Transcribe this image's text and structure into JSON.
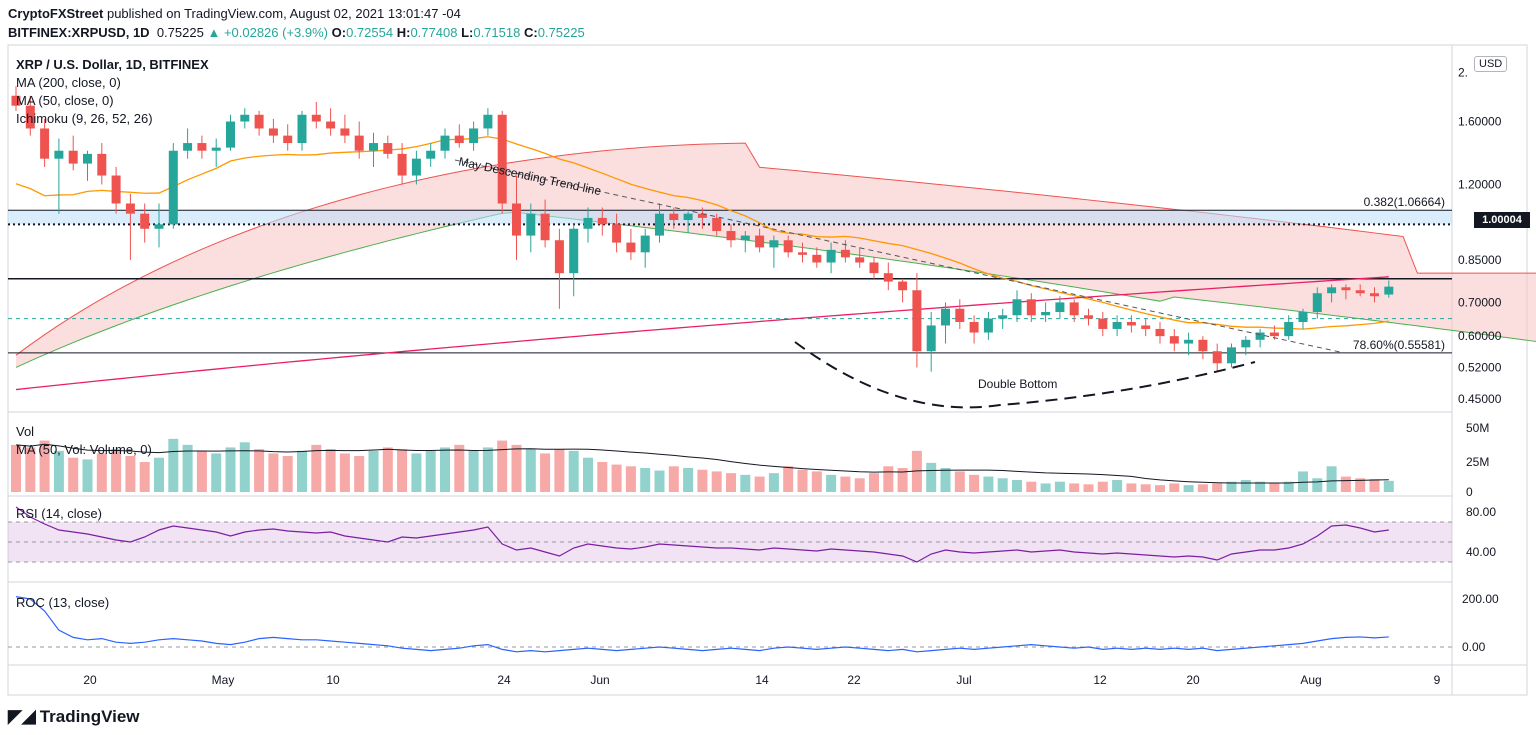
{
  "header": {
    "publisher_line_bold": "CryptoFXStreet",
    "publisher_line_rest": " published on TradingView.com, August 02, 2021 13:01:47 -04",
    "symbol": "BITFINEX:XRPUSD, 1D",
    "last": "0.75225",
    "change": "+0.02826 (+3.9%)",
    "o_label": "O:",
    "o": "0.72554",
    "h_label": "H:",
    "h": "0.77408",
    "l_label": "L:",
    "l": "0.71518",
    "c_label": "C:",
    "c": "0.75225"
  },
  "legend": {
    "title": "XRP / U.S. Dollar, 1D, BITFINEX",
    "ma200": "MA (200, close, 0)",
    "ma50": "MA (50, close, 0)",
    "ichimoku": "Ichimoku (9, 26, 52, 26)",
    "vol": "Vol",
    "vol_ma": "MA (50, Vol: Volume, 0)",
    "rsi": "RSI (14, close)",
    "roc": "ROC (13, close)"
  },
  "annotations": {
    "trend_line": "May Descending Trend line",
    "double_bottom": "Double Bottom",
    "fib_382": "0.382(1.06664)",
    "fib_786": "78.60%(0.55581)",
    "current_price": "1.00004",
    "usd_badge": "USD"
  },
  "colors": {
    "up": "#26a69a",
    "down": "#ef5350",
    "ma200": "#e91e63",
    "ma50": "#ff9800",
    "cloud_bear": "#f8c8c8",
    "cloud_bull": "#c8e6c9",
    "rsi": "#7b1fa2",
    "roc": "#2962ff"
  },
  "footer": {
    "brand": "TradingView"
  },
  "chart_data": {
    "type": "candlestick",
    "price_axis_ticks": [
      "2.",
      "1.60000",
      "1.20000",
      "0.85000",
      "0.70000",
      "0.60000",
      "0.52000",
      "0.45000"
    ],
    "volume_axis_ticks": [
      "50M",
      "25M",
      "0"
    ],
    "rsi_axis_ticks": [
      "80.00",
      "40.00"
    ],
    "roc_axis_ticks": [
      "200.00",
      "0.00"
    ],
    "x_ticks": [
      "20",
      "May",
      "10",
      "24",
      "Jun",
      "14",
      "22",
      "Jul",
      "12",
      "20",
      "Aug",
      "9"
    ],
    "horizontal_levels": [
      1.06664,
      1.00004,
      0.78,
      0.65,
      0.55581
    ],
    "candles": [
      [
        1.8,
        1.88,
        1.68,
        1.72
      ],
      [
        1.72,
        1.8,
        1.5,
        1.55
      ],
      [
        1.55,
        1.62,
        1.3,
        1.35
      ],
      [
        1.35,
        1.48,
        1.05,
        1.4
      ],
      [
        1.4,
        1.5,
        1.28,
        1.32
      ],
      [
        1.32,
        1.4,
        1.22,
        1.38
      ],
      [
        1.38,
        1.45,
        1.2,
        1.25
      ],
      [
        1.25,
        1.3,
        1.05,
        1.1
      ],
      [
        1.1,
        1.15,
        0.85,
        1.05
      ],
      [
        1.05,
        1.1,
        0.92,
        0.98
      ],
      [
        0.98,
        1.1,
        0.9,
        1.0
      ],
      [
        1.0,
        1.45,
        0.98,
        1.4
      ],
      [
        1.4,
        1.55,
        1.35,
        1.45
      ],
      [
        1.45,
        1.5,
        1.35,
        1.4
      ],
      [
        1.4,
        1.48,
        1.3,
        1.42
      ],
      [
        1.42,
        1.65,
        1.4,
        1.6
      ],
      [
        1.6,
        1.7,
        1.55,
        1.65
      ],
      [
        1.65,
        1.68,
        1.5,
        1.55
      ],
      [
        1.55,
        1.62,
        1.45,
        1.5
      ],
      [
        1.5,
        1.58,
        1.4,
        1.45
      ],
      [
        1.45,
        1.68,
        1.4,
        1.65
      ],
      [
        1.65,
        1.75,
        1.55,
        1.6
      ],
      [
        1.6,
        1.7,
        1.5,
        1.55
      ],
      [
        1.55,
        1.65,
        1.45,
        1.5
      ],
      [
        1.5,
        1.6,
        1.35,
        1.4
      ],
      [
        1.4,
        1.52,
        1.3,
        1.45
      ],
      [
        1.45,
        1.5,
        1.35,
        1.38
      ],
      [
        1.38,
        1.45,
        1.2,
        1.25
      ],
      [
        1.25,
        1.4,
        1.2,
        1.35
      ],
      [
        1.35,
        1.45,
        1.3,
        1.4
      ],
      [
        1.4,
        1.55,
        1.35,
        1.5
      ],
      [
        1.5,
        1.58,
        1.42,
        1.45
      ],
      [
        1.45,
        1.6,
        1.4,
        1.55
      ],
      [
        1.55,
        1.7,
        1.5,
        1.65
      ],
      [
        1.65,
        1.68,
        1.05,
        1.1
      ],
      [
        1.1,
        1.25,
        0.85,
        0.95
      ],
      [
        0.95,
        1.1,
        0.88,
        1.05
      ],
      [
        1.05,
        1.12,
        0.9,
        0.93
      ],
      [
        0.93,
        0.98,
        0.68,
        0.8
      ],
      [
        0.8,
        1.0,
        0.72,
        0.98
      ],
      [
        0.98,
        1.08,
        0.92,
        1.03
      ],
      [
        1.03,
        1.08,
        0.95,
        1.0
      ],
      [
        1.0,
        1.05,
        0.88,
        0.92
      ],
      [
        0.92,
        0.98,
        0.85,
        0.88
      ],
      [
        0.88,
        0.98,
        0.82,
        0.95
      ],
      [
        0.95,
        1.1,
        0.92,
        1.05
      ],
      [
        1.05,
        1.08,
        0.98,
        1.02
      ],
      [
        1.02,
        1.06,
        0.96,
        1.05
      ],
      [
        1.05,
        1.08,
        0.98,
        1.03
      ],
      [
        1.03,
        1.05,
        0.95,
        0.97
      ],
      [
        0.97,
        1.0,
        0.9,
        0.93
      ],
      [
        0.93,
        0.97,
        0.88,
        0.95
      ],
      [
        0.95,
        0.98,
        0.88,
        0.9
      ],
      [
        0.9,
        0.95,
        0.82,
        0.93
      ],
      [
        0.93,
        0.95,
        0.86,
        0.88
      ],
      [
        0.88,
        0.92,
        0.84,
        0.87
      ],
      [
        0.87,
        0.9,
        0.82,
        0.84
      ],
      [
        0.84,
        0.92,
        0.8,
        0.89
      ],
      [
        0.89,
        0.93,
        0.84,
        0.86
      ],
      [
        0.86,
        0.9,
        0.82,
        0.84
      ],
      [
        0.84,
        0.86,
        0.78,
        0.8
      ],
      [
        0.8,
        0.84,
        0.74,
        0.77
      ],
      [
        0.77,
        0.78,
        0.7,
        0.74
      ],
      [
        0.74,
        0.8,
        0.52,
        0.56
      ],
      [
        0.56,
        0.67,
        0.51,
        0.63
      ],
      [
        0.63,
        0.7,
        0.58,
        0.68
      ],
      [
        0.68,
        0.71,
        0.62,
        0.64
      ],
      [
        0.64,
        0.66,
        0.58,
        0.61
      ],
      [
        0.61,
        0.67,
        0.59,
        0.65
      ],
      [
        0.65,
        0.68,
        0.62,
        0.66
      ],
      [
        0.66,
        0.74,
        0.64,
        0.71
      ],
      [
        0.71,
        0.73,
        0.64,
        0.66
      ],
      [
        0.66,
        0.7,
        0.64,
        0.67
      ],
      [
        0.67,
        0.72,
        0.65,
        0.7
      ],
      [
        0.7,
        0.71,
        0.64,
        0.66
      ],
      [
        0.66,
        0.68,
        0.63,
        0.65
      ],
      [
        0.65,
        0.67,
        0.6,
        0.62
      ],
      [
        0.62,
        0.66,
        0.6,
        0.64
      ],
      [
        0.64,
        0.66,
        0.61,
        0.63
      ],
      [
        0.63,
        0.65,
        0.6,
        0.62
      ],
      [
        0.62,
        0.64,
        0.58,
        0.6
      ],
      [
        0.6,
        0.62,
        0.56,
        0.58
      ],
      [
        0.58,
        0.61,
        0.55,
        0.59
      ],
      [
        0.59,
        0.6,
        0.54,
        0.56
      ],
      [
        0.56,
        0.58,
        0.51,
        0.53
      ],
      [
        0.53,
        0.58,
        0.52,
        0.57
      ],
      [
        0.57,
        0.6,
        0.55,
        0.59
      ],
      [
        0.59,
        0.62,
        0.57,
        0.61
      ],
      [
        0.61,
        0.63,
        0.59,
        0.6
      ],
      [
        0.6,
        0.66,
        0.59,
        0.64
      ],
      [
        0.64,
        0.68,
        0.62,
        0.67
      ],
      [
        0.67,
        0.75,
        0.65,
        0.73
      ],
      [
        0.73,
        0.76,
        0.7,
        0.75
      ],
      [
        0.75,
        0.76,
        0.71,
        0.74
      ],
      [
        0.74,
        0.76,
        0.72,
        0.73
      ],
      [
        0.73,
        0.75,
        0.7,
        0.72
      ],
      [
        0.72554,
        0.77408,
        0.71518,
        0.75225
      ]
    ],
    "volume_m": [
      55,
      52,
      60,
      48,
      40,
      38,
      45,
      50,
      42,
      35,
      40,
      62,
      55,
      48,
      45,
      52,
      58,
      50,
      45,
      42,
      48,
      55,
      50,
      45,
      42,
      48,
      52,
      50,
      45,
      48,
      52,
      55,
      48,
      52,
      60,
      55,
      50,
      45,
      50,
      48,
      40,
      35,
      32,
      30,
      28,
      25,
      30,
      28,
      26,
      24,
      22,
      20,
      18,
      22,
      30,
      26,
      24,
      20,
      18,
      16,
      22,
      30,
      28,
      48,
      34,
      28,
      24,
      20,
      18,
      16,
      14,
      12,
      10,
      12,
      10,
      9,
      12,
      14,
      10,
      9,
      8,
      10,
      8,
      9,
      10,
      12,
      14,
      12,
      10,
      12,
      24,
      16,
      30,
      18,
      16,
      15,
      13
    ],
    "rsi": [
      85,
      75,
      68,
      62,
      60,
      58,
      55,
      52,
      50,
      55,
      62,
      66,
      64,
      62,
      60,
      56,
      60,
      62,
      63,
      61,
      60,
      59,
      60,
      56,
      54,
      52,
      50,
      55,
      54,
      56,
      58,
      60,
      62,
      65,
      48,
      42,
      44,
      40,
      36,
      44,
      48,
      46,
      44,
      43,
      45,
      48,
      47,
      46,
      45,
      44,
      44,
      43,
      42,
      44,
      43,
      42,
      41,
      43,
      42,
      41,
      40,
      38,
      36,
      30,
      38,
      42,
      40,
      39,
      40,
      41,
      42,
      40,
      41,
      42,
      40,
      39,
      38,
      39,
      38,
      37,
      36,
      35,
      36,
      35,
      32,
      38,
      40,
      42,
      42,
      44,
      48,
      56,
      66,
      67,
      64,
      60,
      62
    ],
    "roc": [
      210,
      200,
      150,
      70,
      40,
      30,
      35,
      20,
      15,
      20,
      30,
      35,
      30,
      25,
      15,
      10,
      20,
      35,
      40,
      35,
      30,
      30,
      25,
      20,
      15,
      10,
      5,
      -5,
      -10,
      -15,
      -10,
      -5,
      5,
      10,
      -10,
      -20,
      -15,
      -20,
      -15,
      -10,
      -5,
      -10,
      -15,
      -10,
      -5,
      0,
      -5,
      -10,
      -15,
      -10,
      -5,
      -10,
      -15,
      -5,
      0,
      -5,
      -10,
      -5,
      0,
      -5,
      -10,
      -15,
      -10,
      -20,
      -15,
      -10,
      -5,
      -10,
      -5,
      0,
      5,
      10,
      5,
      0,
      -5,
      0,
      -10,
      -5,
      -10,
      -5,
      -10,
      -5,
      -10,
      -5,
      -15,
      -10,
      -5,
      0,
      5,
      10,
      15,
      25,
      35,
      40,
      42,
      38,
      42
    ]
  }
}
